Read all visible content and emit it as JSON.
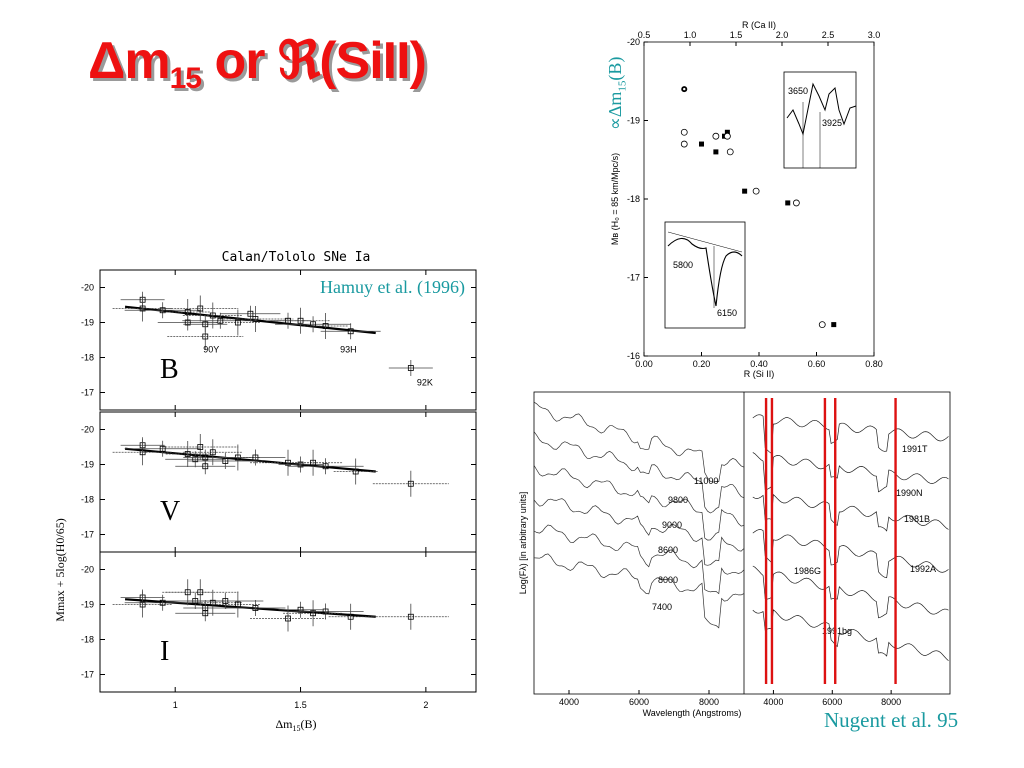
{
  "slide": {
    "title_prefix": "Δm",
    "title_sub": "15",
    "title_or": " or ",
    "title_script_r": "ℜ",
    "title_suffix": "(SiII)"
  },
  "captions": {
    "hamuy": "Hamuy et al. (1996)",
    "nugent": "Nugent et al. 95",
    "proportional_label": "∝Δm15(B)"
  },
  "colors": {
    "title": "#ee1111",
    "caption": "#1a9aa0",
    "spectral_lines": "#dd1111"
  },
  "chart_data": [
    {
      "type": "scatter",
      "title": "Calan/Tololo SNe Ia",
      "xlabel": "Δm15(B)",
      "ylabel": "Mmax + 5log(H0/65)",
      "xticks": [
        "1",
        "1.5",
        "2"
      ],
      "xlim": [
        0.7,
        2.2
      ],
      "panels": [
        {
          "band": "B",
          "yticks": [
            "-20",
            "-19",
            "-18",
            "-17"
          ],
          "ylim": [
            -16.5,
            -20.5
          ],
          "annotations": [
            "90Y",
            "93H",
            "92K"
          ],
          "fit": {
            "x": [
              0.8,
              1.8
            ],
            "y": [
              -19.45,
              -18.7
            ]
          },
          "points": [
            {
              "x": 0.87,
              "y": -19.65
            },
            {
              "x": 0.87,
              "y": -19.4
            },
            {
              "x": 0.95,
              "y": -19.35
            },
            {
              "x": 1.05,
              "y": -19.3
            },
            {
              "x": 1.05,
              "y": -19.0
            },
            {
              "x": 1.1,
              "y": -19.4
            },
            {
              "x": 1.12,
              "y": -18.95
            },
            {
              "x": 1.15,
              "y": -19.2
            },
            {
              "x": 1.18,
              "y": -19.05
            },
            {
              "x": 1.25,
              "y": -19.0
            },
            {
              "x": 1.3,
              "y": -19.25
            },
            {
              "x": 1.32,
              "y": -19.1
            },
            {
              "x": 1.45,
              "y": -19.05
            },
            {
              "x": 1.5,
              "y": -19.05
            },
            {
              "x": 1.55,
              "y": -18.95
            },
            {
              "x": 1.6,
              "y": -18.9
            },
            {
              "x": 1.7,
              "y": -18.75
            },
            {
              "x": 1.12,
              "y": -18.6
            },
            {
              "x": 1.94,
              "y": -17.7
            }
          ]
        },
        {
          "band": "V",
          "yticks": [
            "-20",
            "-19",
            "-18",
            "-17"
          ],
          "ylim": [
            -16.5,
            -20.5
          ],
          "annotations": [],
          "fit": {
            "x": [
              0.8,
              1.8
            ],
            "y": [
              -19.45,
              -18.8
            ]
          },
          "points": [
            {
              "x": 0.87,
              "y": -19.55
            },
            {
              "x": 0.87,
              "y": -19.35
            },
            {
              "x": 0.95,
              "y": -19.45
            },
            {
              "x": 1.05,
              "y": -19.3
            },
            {
              "x": 1.08,
              "y": -19.15
            },
            {
              "x": 1.1,
              "y": -19.5
            },
            {
              "x": 1.12,
              "y": -19.2
            },
            {
              "x": 1.15,
              "y": -19.35
            },
            {
              "x": 1.2,
              "y": -19.1
            },
            {
              "x": 1.25,
              "y": -19.2
            },
            {
              "x": 1.32,
              "y": -19.2
            },
            {
              "x": 1.45,
              "y": -19.05
            },
            {
              "x": 1.5,
              "y": -19.0
            },
            {
              "x": 1.55,
              "y": -19.05
            },
            {
              "x": 1.6,
              "y": -18.95
            },
            {
              "x": 1.72,
              "y": -18.8
            },
            {
              "x": 1.12,
              "y": -18.95
            },
            {
              "x": 1.94,
              "y": -18.45
            }
          ]
        },
        {
          "band": "I",
          "yticks": [
            "-20",
            "-19",
            "-18",
            "-17"
          ],
          "ylim": [
            -16.5,
            -20.5
          ],
          "annotations": [],
          "fit": {
            "x": [
              0.8,
              1.8
            ],
            "y": [
              -19.15,
              -18.65
            ]
          },
          "points": [
            {
              "x": 0.87,
              "y": -19.2
            },
            {
              "x": 0.87,
              "y": -19.0
            },
            {
              "x": 0.95,
              "y": -19.05
            },
            {
              "x": 1.05,
              "y": -19.35
            },
            {
              "x": 1.08,
              "y": -19.1
            },
            {
              "x": 1.1,
              "y": -19.35
            },
            {
              "x": 1.12,
              "y": -18.9
            },
            {
              "x": 1.15,
              "y": -19.05
            },
            {
              "x": 1.2,
              "y": -19.1
            },
            {
              "x": 1.25,
              "y": -19.0
            },
            {
              "x": 1.32,
              "y": -18.9
            },
            {
              "x": 1.45,
              "y": -18.6
            },
            {
              "x": 1.5,
              "y": -18.85
            },
            {
              "x": 1.55,
              "y": -18.75
            },
            {
              "x": 1.6,
              "y": -18.8
            },
            {
              "x": 1.7,
              "y": -18.65
            },
            {
              "x": 1.12,
              "y": -18.75
            },
            {
              "x": 1.94,
              "y": -18.65
            }
          ]
        }
      ]
    },
    {
      "type": "scatter",
      "xlabel": "R (Si II)",
      "x2label": "R (Ca II)",
      "ylabel": "Mв (H₀ = 85 km/Mpc/s)",
      "xlim": [
        0.0,
        0.8
      ],
      "x2lim": [
        0.5,
        3.0
      ],
      "ylim": [
        -20,
        -16
      ],
      "xticks": [
        "0.00",
        "0.20",
        "0.40",
        "0.60",
        "0.80"
      ],
      "x2ticks": [
        "0.5",
        "1.0",
        "1.5",
        "2.0",
        "2.5",
        "3.0"
      ],
      "yticks": [
        "-20",
        "-19",
        "-18",
        "-17",
        "-16"
      ],
      "inset_labels": [
        "3650",
        "3925",
        "5800",
        "6150"
      ],
      "series": [
        {
          "name": "",
          "marker": "filled-square",
          "x": [
            0.2,
            0.25,
            0.28,
            0.29,
            0.35,
            0.5,
            0.66
          ],
          "y": [
            -18.7,
            -18.6,
            -18.8,
            -18.85,
            -18.1,
            -17.95,
            -16.4
          ]
        },
        {
          "name": "",
          "marker": "open-circle",
          "x": [
            0.14,
            0.14,
            0.25,
            0.29,
            0.3,
            0.39,
            0.53,
            0.62
          ],
          "y": [
            -18.85,
            -18.7,
            -18.8,
            -18.8,
            -18.6,
            -18.1,
            -17.95,
            -16.4
          ]
        },
        {
          "name": "",
          "marker": "star",
          "x": [
            0.14
          ],
          "y": [
            -19.4
          ]
        }
      ]
    },
    {
      "type": "line",
      "xlabel": "Wavelength (Angstroms)",
      "ylabel": "Log(Fλ) [in arbitrary units]",
      "xticks": [
        "4000",
        "6000",
        "8000",
        "4000",
        "6000",
        "8000"
      ],
      "temperature_labels": [
        "11000",
        "9800",
        "9000",
        "8600",
        "8000",
        "7400"
      ],
      "sn_labels": [
        "1991T",
        "1990N",
        "1981B",
        "1992A",
        "1986G",
        "1991bg"
      ],
      "marked_wavelengths": [
        3750,
        3950,
        5750,
        6100,
        8150
      ]
    }
  ]
}
